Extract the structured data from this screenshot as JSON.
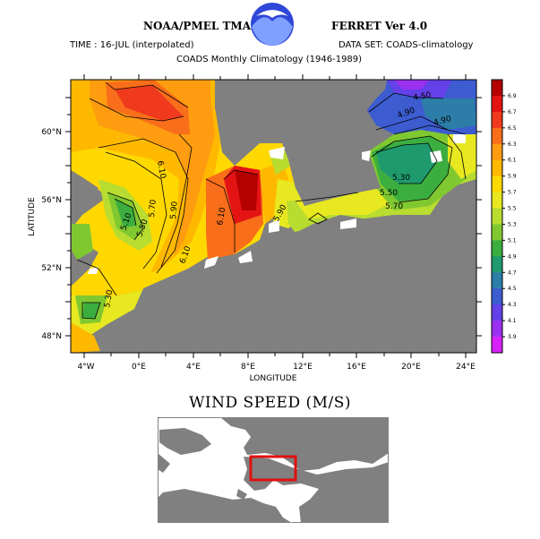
{
  "header": {
    "title_left": "NOAA/PMEL TMAP",
    "title_right": "FERRET Ver 4.0",
    "time": "TIME : 16-JUL (interpolated)",
    "dataset": "DATA SET: COADS-climatology",
    "subtitle": "COADS Monthly Climatology (1946-1989)"
  },
  "logo": {
    "icon": "noaa-logo-icon",
    "colors": {
      "outer": "#2e47d8",
      "inner": "#7fa0ff"
    }
  },
  "map": {
    "xlabel": "LONGITUDE",
    "ylabel": "LATITUDE",
    "x_ticks": [
      "4°W",
      "0°E",
      "4°E",
      "8°E",
      "12°E",
      "16°E",
      "20°E",
      "24°E"
    ],
    "y_ticks": [
      "48°N",
      "52°N",
      "56°N",
      "60°N"
    ],
    "contour_labels": [
      "6.10",
      "5.90",
      "5.70",
      "5.50",
      "5.10",
      "5.30",
      "6.10",
      "6.10",
      "5.90",
      "5.30",
      "5.50",
      "5.70",
      "4.90",
      "4.50",
      "4.90"
    ],
    "land_color": "#808080"
  },
  "colorbar": {
    "ticks": [
      "6.9",
      "6.7",
      "6.5",
      "6.3",
      "6.1",
      "5.9",
      "5.7",
      "5.5",
      "5.3",
      "5.1",
      "4.9",
      "4.7",
      "4.5",
      "4.3",
      "4.1",
      "3.9"
    ],
    "colors": [
      "#b50000",
      "#e41414",
      "#f03a1e",
      "#f96e1a",
      "#ff9c10",
      "#ffb800",
      "#ffd800",
      "#e8e820",
      "#b8dc30",
      "#80c830",
      "#3cae40",
      "#1e9a6e",
      "#2c7ea8",
      "#3c5cd0",
      "#6440e8",
      "#9a30f0",
      "#d820f8"
    ]
  },
  "variable_title": "WIND SPEED (M/S)",
  "inset": {
    "highlight_color": "#e01010"
  }
}
